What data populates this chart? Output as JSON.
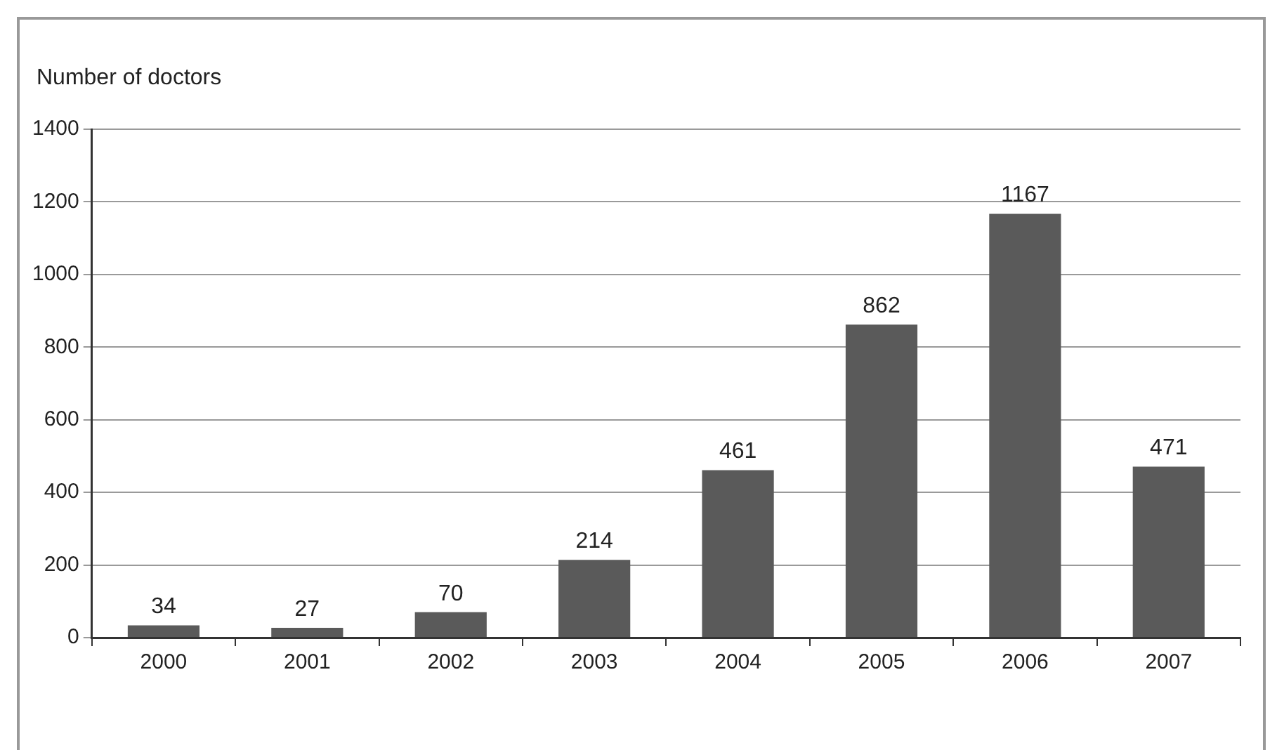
{
  "chart_data": {
    "type": "bar",
    "ylabel": "Number of doctors",
    "categories": [
      "2000",
      "2001",
      "2002",
      "2003",
      "2004",
      "2005",
      "2006",
      "2007"
    ],
    "values": [
      34,
      27,
      70,
      214,
      461,
      862,
      1167,
      471
    ],
    "color": "#5a5a5a",
    "ylim": [
      0,
      1400
    ],
    "yticks": [
      0,
      200,
      400,
      600,
      800,
      1000,
      1200,
      1400
    ],
    "grid": "y",
    "data_labels": true,
    "legend": false
  }
}
